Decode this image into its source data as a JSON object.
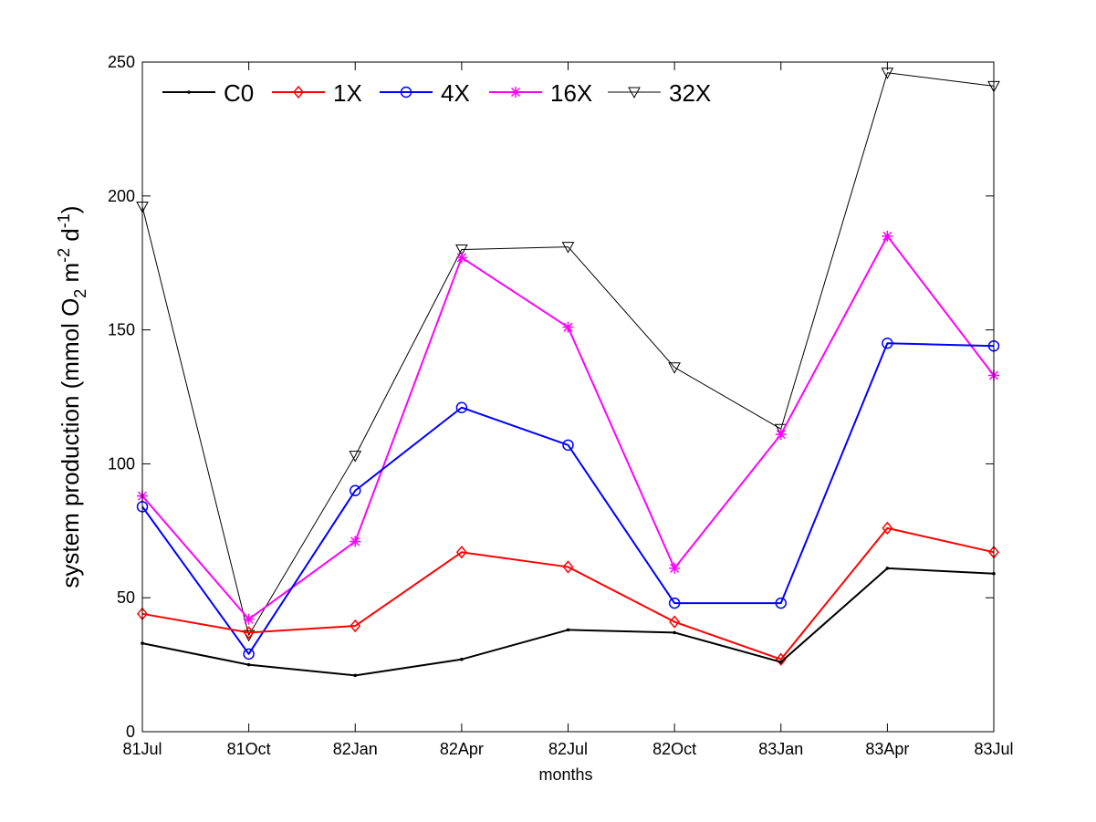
{
  "chart_data": {
    "type": "line",
    "title": "",
    "xlabel": "months",
    "ylabel_parts": {
      "a": "system production (mmol O",
      "sub": "2",
      "b": " m",
      "sup1": "-2",
      "c": " d",
      "sup2": "-1",
      "d": ")"
    },
    "categories": [
      "81Jul",
      "81Oct",
      "82Jan",
      "82Apr",
      "82Jul",
      "82Oct",
      "83Jan",
      "83Apr",
      "83Jul"
    ],
    "ylim": [
      0,
      250
    ],
    "yticks": [
      "0",
      "50",
      "100",
      "150",
      "200",
      "250"
    ],
    "legend_position": "top-left",
    "grid": false,
    "series": [
      {
        "name": "C0",
        "color": "#000000",
        "marker": "dot",
        "values": [
          33,
          25,
          21,
          27,
          38,
          37,
          26,
          61,
          59
        ]
      },
      {
        "name": "1X",
        "color": "#ff0000",
        "marker": "diamond",
        "values": [
          44,
          37,
          39.5,
          67,
          61.5,
          41,
          27,
          76,
          67
        ]
      },
      {
        "name": "4X",
        "color": "#0000ff",
        "marker": "circle",
        "values": [
          84,
          29,
          90,
          121,
          107,
          48,
          48,
          145,
          144
        ]
      },
      {
        "name": "16X",
        "color": "#ff00ff",
        "marker": "star",
        "values": [
          88,
          42,
          71,
          177,
          151,
          61,
          111,
          185,
          133
        ]
      },
      {
        "name": "32X",
        "color": "#000000",
        "marker": "triangle-down",
        "values": [
          196,
          36,
          103,
          180,
          181,
          136,
          113,
          246,
          241
        ]
      }
    ]
  }
}
